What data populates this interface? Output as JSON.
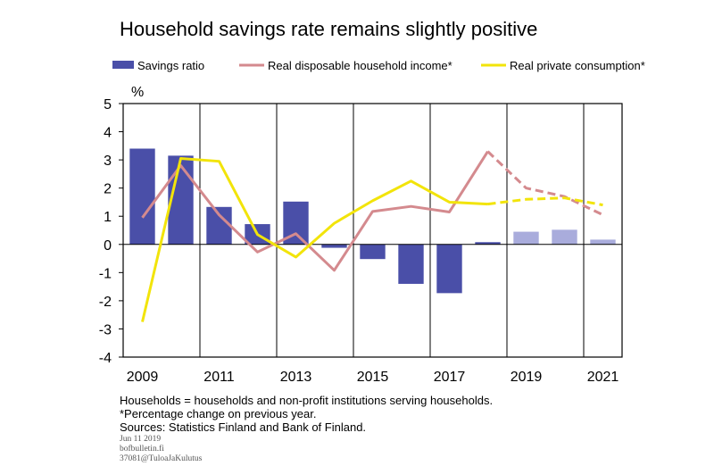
{
  "title": "Household savings rate remains slightly positive",
  "colors": {
    "savings": "#4A4FA8",
    "savings_forecast": "#A9ACDC",
    "income": "#D48A8E",
    "consumption": "#F2E40A",
    "grid": "#000000"
  },
  "notes": [
    "Households = households and non-profit institutions serving households.",
    "*Percentage change on previous year.",
    "Sources: Statistics Finland and Bank of Finland."
  ],
  "meta": [
    "Jun 11 2019",
    "bofbulletin.fi",
    "37081@TuloaJaKulutus"
  ],
  "chart_data": {
    "type": "bar",
    "ylabel": "%",
    "ylim": [
      -4,
      5
    ],
    "yticks": [
      5,
      4,
      3,
      2,
      1,
      0,
      -1,
      -2,
      -3,
      -4
    ],
    "categories": [
      "2009",
      "2010",
      "2011",
      "2012",
      "2013",
      "2014",
      "2015",
      "2016",
      "2017",
      "2018",
      "2019",
      "2020",
      "2021"
    ],
    "xtick_labels": [
      "2009",
      "2011",
      "2013",
      "2015",
      "2017",
      "2019",
      "2021"
    ],
    "forecast_from": "2019",
    "grid": "vertical",
    "legend_position": "top",
    "series": [
      {
        "name": "Savings ratio",
        "kind": "bar",
        "values": [
          3.4,
          3.15,
          1.33,
          0.72,
          1.52,
          -0.12,
          -0.52,
          -1.4,
          -1.73,
          0.08,
          0.45,
          0.52,
          0.17
        ]
      },
      {
        "name": "Real disposable household income*",
        "kind": "line",
        "values": [
          0.95,
          2.8,
          1.05,
          -0.27,
          0.38,
          -0.92,
          1.17,
          1.35,
          1.15,
          3.3,
          2.0,
          1.7,
          1.05
        ]
      },
      {
        "name": "Real private consumption*",
        "kind": "line",
        "values": [
          -2.75,
          3.05,
          2.95,
          0.35,
          -0.45,
          0.75,
          1.55,
          2.25,
          1.5,
          1.43,
          1.6,
          1.65,
          1.4
        ]
      }
    ]
  }
}
